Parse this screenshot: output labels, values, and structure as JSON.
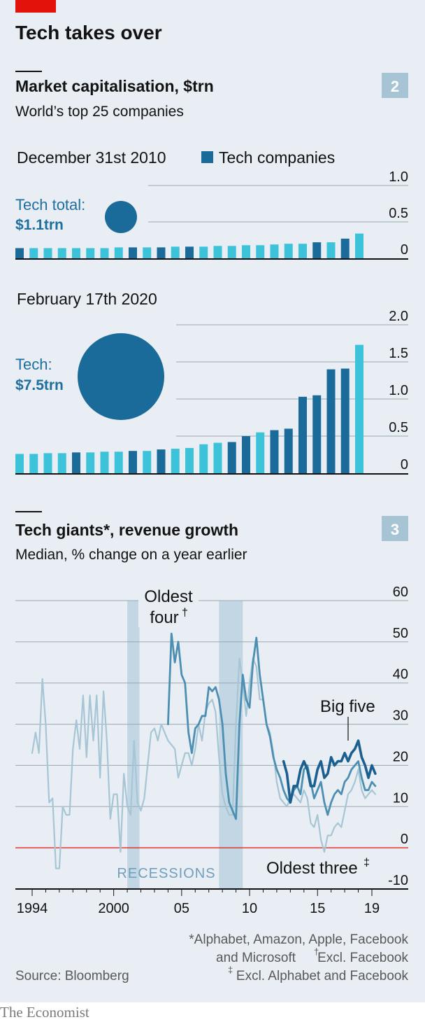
{
  "header": {
    "title": "Tech takes over",
    "accent_color": "#e3120b",
    "publisher": "The Economist"
  },
  "chart2": {
    "number": "2",
    "title": "Market capitalisation, $trn",
    "subtitle": "World’s top 25 companies",
    "legend": "Tech companies"
  },
  "chart3": {
    "number": "3",
    "title": "Tech giants*, revenue growth",
    "subtitle": "Median, % change on a year earlier",
    "recessions_label": "RECESSIONS",
    "label_oldest_four": "Oldest",
    "label_oldest_four_2": "four",
    "label_oldest_four_mark": "†",
    "label_big_five": "Big five",
    "label_oldest_three": "Oldest three",
    "label_oldest_three_mark": "‡"
  },
  "footnotes": {
    "line1": "*Alphabet, Amazon, Apple, Facebook",
    "line2": "and Microsoft",
    "line2b_mark": "†",
    "line2b": "Excl. Facebook",
    "line3_mark": "‡",
    "line3": "Excl. Alphabet and Facebook",
    "source": "Source: Bloomberg"
  },
  "colors": {
    "tech": "#1a6a9a",
    "other": "#3cc3d9",
    "big_five": "#1a5f8f",
    "oldest_four": "#4d8fb3",
    "oldest_three": "#a6c6d6",
    "recession": "#b5cfde",
    "zero_line": "#e3120b",
    "grid": "#9aa8b2"
  },
  "chart_data": [
    {
      "type": "bar",
      "title": "December 31st 2010",
      "total_label": "Tech total:",
      "total_value": "$1.1trn",
      "total_trn": 1.1,
      "ylim": [
        0,
        1.0
      ],
      "yticks": [
        "1.0",
        "0.5",
        "0"
      ],
      "ytick_values": [
        1.0,
        0.5,
        0
      ],
      "values": [
        0.14,
        0.14,
        0.14,
        0.14,
        0.14,
        0.14,
        0.14,
        0.15,
        0.15,
        0.15,
        0.15,
        0.16,
        0.16,
        0.16,
        0.17,
        0.17,
        0.18,
        0.18,
        0.19,
        0.2,
        0.2,
        0.22,
        0.22,
        0.27,
        0.34
      ],
      "is_tech": [
        1,
        0,
        0,
        0,
        0,
        0,
        0,
        0,
        1,
        0,
        1,
        0,
        1,
        0,
        0,
        0,
        0,
        0,
        0,
        0,
        0,
        1,
        0,
        1,
        0
      ]
    },
    {
      "type": "bar",
      "title": "February 17th 2020",
      "total_label": "Tech:",
      "total_value": "$7.5trn",
      "total_trn": 7.5,
      "ylim": [
        0,
        2.0
      ],
      "yticks": [
        "2.0",
        "1.5",
        "1.0",
        "0.5",
        "0"
      ],
      "ytick_values": [
        2.0,
        1.5,
        1.0,
        0.5,
        0
      ],
      "values": [
        0.26,
        0.26,
        0.27,
        0.27,
        0.28,
        0.28,
        0.29,
        0.29,
        0.3,
        0.3,
        0.32,
        0.33,
        0.34,
        0.39,
        0.41,
        0.42,
        0.5,
        0.55,
        0.58,
        0.6,
        1.03,
        1.05,
        1.4,
        1.41,
        1.73
      ],
      "is_tech": [
        0,
        0,
        0,
        0,
        1,
        0,
        0,
        0,
        1,
        0,
        1,
        0,
        0,
        0,
        0,
        1,
        1,
        0,
        1,
        1,
        1,
        1,
        1,
        1,
        0
      ]
    },
    {
      "type": "line",
      "xlabel_ticks": [
        "1994",
        "2000",
        "05",
        "10",
        "15",
        "19"
      ],
      "xtick_values": [
        1994,
        2000,
        2005,
        2010,
        2015,
        2019
      ],
      "xlim": [
        1993.8,
        2020.8
      ],
      "ylim": [
        -10,
        60
      ],
      "yticks": [
        "60",
        "50",
        "40",
        "30",
        "20",
        "10",
        "0",
        "-10"
      ],
      "ytick_values": [
        60,
        50,
        40,
        30,
        20,
        10,
        0,
        -10
      ],
      "recessions": [
        [
          2001.0,
          2001.9
        ],
        [
          2007.75,
          2009.5
        ]
      ],
      "series": [
        {
          "name": "Oldest three",
          "x": [
            1994.0,
            1994.25,
            1994.5,
            1994.75,
            1995.0,
            1995.25,
            1995.5,
            1995.75,
            1996.0,
            1996.25,
            1996.5,
            1996.75,
            1997.0,
            1997.25,
            1997.5,
            1997.75,
            1998.0,
            1998.25,
            1998.5,
            1998.75,
            1999.0,
            1999.25,
            1999.5,
            1999.75,
            2000.0,
            2000.25,
            2000.5,
            2000.75,
            2001.0,
            2001.25,
            2001.5,
            2001.75,
            2002.0,
            2002.25,
            2002.5,
            2002.75,
            2003.0,
            2003.25,
            2003.5,
            2003.75,
            2004.0,
            2004.25,
            2004.5,
            2004.75,
            2005.0,
            2005.25,
            2005.5,
            2005.75,
            2006.0,
            2006.25,
            2006.5,
            2006.75,
            2007.0,
            2007.25,
            2007.5,
            2007.75,
            2008.0,
            2008.25,
            2008.5,
            2008.75,
            2009.0,
            2009.25,
            2009.5,
            2009.75,
            2010.0,
            2010.25,
            2010.5,
            2010.75,
            2011.0,
            2011.25,
            2011.5,
            2011.75,
            2012.0,
            2012.25,
            2012.5,
            2012.75,
            2013.0,
            2013.25,
            2013.5,
            2013.75,
            2014.0,
            2014.25,
            2014.5,
            2014.75,
            2015.0,
            2015.25,
            2015.5,
            2015.75,
            2016.0,
            2016.25,
            2016.5,
            2016.75,
            2017.0,
            2017.25,
            2017.5,
            2017.75,
            2018.0,
            2018.25,
            2018.5,
            2018.75,
            2019.0,
            2019.25
          ],
          "values": [
            23,
            28,
            23,
            41,
            30,
            11,
            12,
            -5,
            -5,
            10,
            8,
            8,
            24,
            31,
            24,
            37,
            22,
            37,
            26,
            37,
            17,
            38,
            26,
            7,
            13,
            13,
            -1,
            18,
            10,
            8,
            26,
            11,
            9,
            12,
            20,
            28,
            29,
            26,
            30,
            28,
            26,
            25,
            24,
            17,
            20,
            23,
            23,
            20,
            24,
            30,
            26,
            33,
            35,
            36,
            33,
            22,
            13,
            10,
            8,
            8,
            30,
            46,
            40,
            32,
            40,
            46,
            44,
            36,
            36,
            30,
            28,
            23,
            16,
            12,
            11,
            10,
            12,
            13,
            12,
            11,
            14,
            12,
            6,
            5,
            8,
            2,
            -1,
            3,
            3,
            5,
            6,
            5,
            9,
            13,
            14,
            16,
            19,
            14,
            12,
            13,
            14,
            13
          ]
        },
        {
          "name": "Oldest four",
          "x": [
            2004.0,
            2004.25,
            2004.5,
            2004.75,
            2005.0,
            2005.25,
            2005.5,
            2005.75,
            2006.0,
            2006.25,
            2006.5,
            2006.75,
            2007.0,
            2007.25,
            2007.5,
            2007.75,
            2008.0,
            2008.25,
            2008.5,
            2008.75,
            2009.0,
            2009.25,
            2009.5,
            2009.75,
            2010.0,
            2010.25,
            2010.5,
            2010.75,
            2011.0,
            2011.25,
            2011.5,
            2011.75,
            2012.0,
            2012.25,
            2012.5,
            2012.75,
            2013.0,
            2013.25,
            2013.5,
            2013.75,
            2014.0,
            2014.25,
            2014.5,
            2014.75,
            2015.0,
            2015.25,
            2015.5,
            2015.75,
            2016.0,
            2016.25,
            2016.5,
            2016.75,
            2017.0,
            2017.25,
            2017.5,
            2017.75,
            2018.0,
            2018.25,
            2018.5,
            2018.75,
            2019.0,
            2019.25
          ],
          "values": [
            30,
            52,
            45,
            50,
            42,
            40,
            28,
            23,
            29,
            30,
            32,
            32,
            39,
            38,
            39,
            36,
            30,
            18,
            11,
            9,
            7,
            30,
            42,
            36,
            34,
            45,
            51,
            42,
            36,
            30,
            27,
            22,
            19,
            17,
            14,
            12,
            11,
            14,
            15,
            13,
            19,
            20,
            16,
            12,
            14,
            16,
            11,
            8,
            11,
            13,
            14,
            13,
            16,
            17,
            19,
            20,
            21,
            17,
            14,
            14,
            16,
            15
          ]
        },
        {
          "name": "Big five",
          "x": [
            2012.5,
            2012.75,
            2013.0,
            2013.25,
            2013.5,
            2013.75,
            2014.0,
            2014.25,
            2014.5,
            2014.75,
            2015.0,
            2015.25,
            2015.5,
            2015.75,
            2016.0,
            2016.25,
            2016.5,
            2016.75,
            2017.0,
            2017.25,
            2017.5,
            2017.75,
            2018.0,
            2018.25,
            2018.5,
            2018.75,
            2019.0,
            2019.25
          ],
          "values": [
            21,
            18,
            11,
            15,
            15,
            19,
            21,
            19,
            15,
            15,
            19,
            21,
            17,
            18,
            22,
            20,
            21,
            21,
            23,
            21,
            23,
            24,
            26,
            22,
            20,
            17,
            20,
            18
          ]
        }
      ]
    }
  ]
}
